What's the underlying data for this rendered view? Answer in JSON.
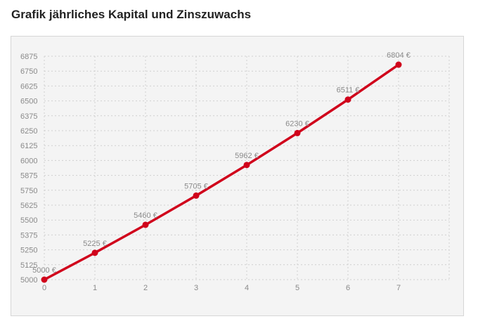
{
  "page": {
    "title": "Grafik jährliches Kapital und Zinszuwachs"
  },
  "colors": {
    "line": "#d0021b",
    "panel_background": "#f4f4f4",
    "grid": "#cfcfcf",
    "tick_text": "#8a8a8a"
  },
  "chart_data": {
    "type": "line",
    "title": "",
    "xlabel": "",
    "ylabel": "",
    "x": [
      0,
      1,
      2,
      3,
      4,
      5,
      6,
      7
    ],
    "series": [
      {
        "values": [
          5000,
          5225,
          5460,
          5705,
          5962,
          6230,
          6511,
          6804
        ],
        "labels": [
          "5000 €",
          "5225 €",
          "5460 €",
          "5705 €",
          "5962 €",
          "6230 €",
          "6511 €",
          "6804 €"
        ]
      }
    ],
    "xlim": [
      0,
      8
    ],
    "ylim": [
      5000,
      6875
    ],
    "yticks": [
      5000,
      5125,
      5250,
      5375,
      5500,
      5625,
      5750,
      5875,
      6000,
      6125,
      6250,
      6375,
      6500,
      6625,
      6750,
      6875
    ],
    "xticks": [
      0,
      1,
      2,
      3,
      4,
      5,
      6,
      7
    ],
    "grid": true,
    "legend": "none"
  }
}
